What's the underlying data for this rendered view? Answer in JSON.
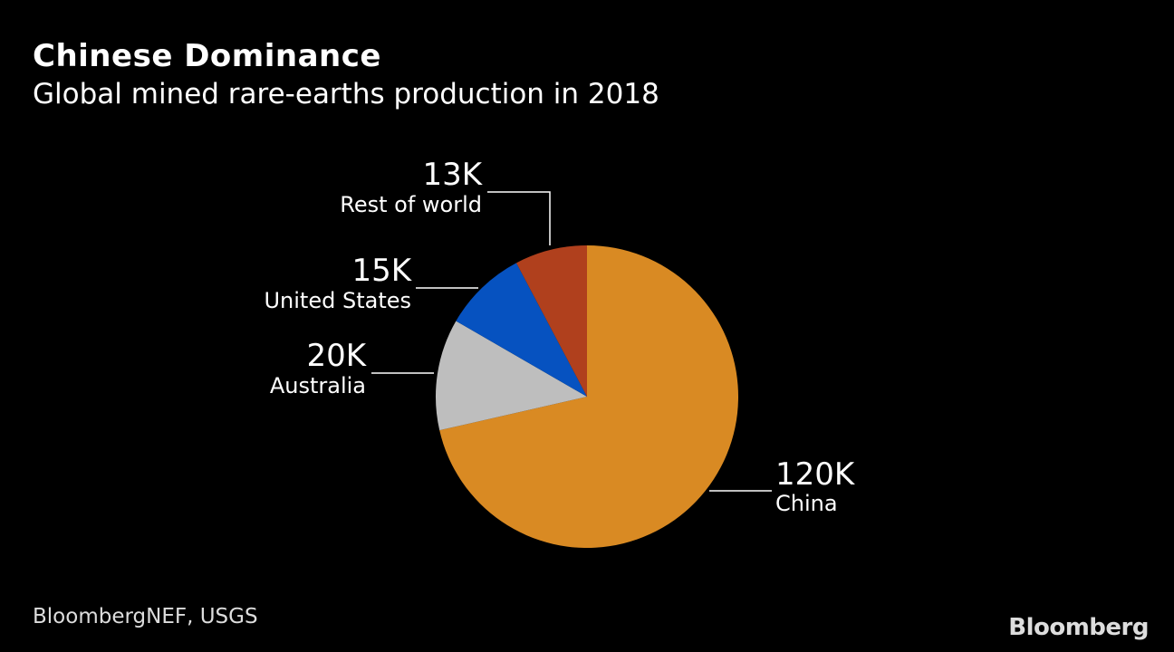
{
  "chart_data": {
    "type": "pie",
    "title": "Chinese Dominance",
    "subtitle": "Global mined rare-earths production in 2018",
    "slices": [
      {
        "name": "China",
        "value": 120000,
        "label": "120K",
        "color": "#d98a23"
      },
      {
        "name": "Australia",
        "value": 20000,
        "label": "20K",
        "color": "#bebebe"
      },
      {
        "name": "United States",
        "value": 15000,
        "label": "15K",
        "color": "#0652c0"
      },
      {
        "name": "Rest of world",
        "value": 13000,
        "label": "13K",
        "color": "#b0401d"
      }
    ],
    "start_angle": "top",
    "direction": "clockwise"
  },
  "footer": {
    "source": "BloombergNEF, USGS",
    "logo": "Bloomberg"
  }
}
